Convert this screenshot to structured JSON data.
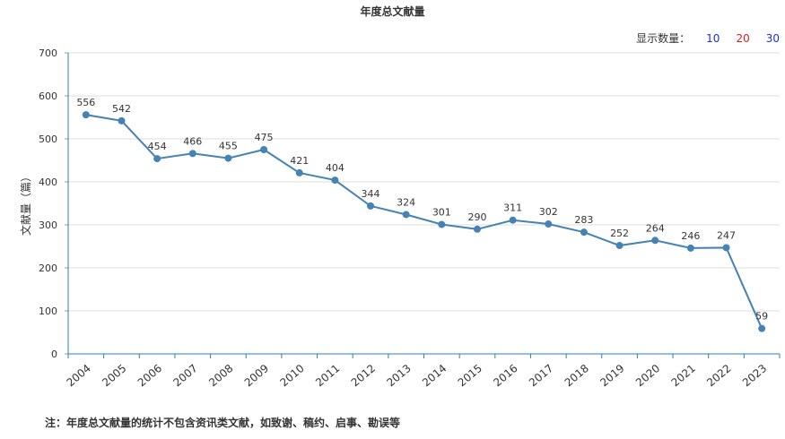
{
  "title": "年度总文献量",
  "display_count": {
    "label": "显示数量：",
    "options": [
      "10",
      "20",
      "30"
    ],
    "colors": [
      "#1a2fd6",
      "#e01c1c",
      "#1a2fd6"
    ]
  },
  "note": "注：年度总文献量的统计不包含资讯类文献，如致谢、稿约、启事、勘误等",
  "chart_data": {
    "type": "line",
    "title": "年度总文献量",
    "xlabel": "",
    "ylabel": "文献量（篇）",
    "ylim": [
      0,
      700
    ],
    "yticks": [
      0,
      100,
      200,
      300,
      400,
      500,
      600,
      700
    ],
    "grid": true,
    "line_color": "#4682b4",
    "categories": [
      "2004",
      "2005",
      "2006",
      "2007",
      "2008",
      "2009",
      "2010",
      "2011",
      "2012",
      "2013",
      "2014",
      "2015",
      "2016",
      "2017",
      "2018",
      "2019",
      "2020",
      "2021",
      "2022",
      "2023"
    ],
    "series": [
      {
        "values": [
          556,
          542,
          454,
          466,
          455,
          475,
          421,
          404,
          344,
          324,
          301,
          290,
          311,
          302,
          283,
          252,
          264,
          246,
          247,
          59
        ]
      }
    ]
  }
}
